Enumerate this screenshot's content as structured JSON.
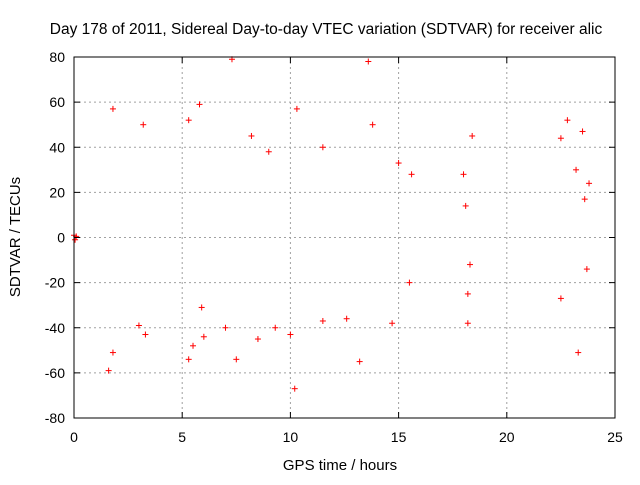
{
  "chart_data": {
    "type": "scatter",
    "title": "Day 178 of 2011, Sidereal Day-to-day VTEC variation (SDTVAR) for receiver alic",
    "xlabel": "GPS time / hours",
    "ylabel": "SDTVAR / TECUs",
    "xlim": [
      0,
      25
    ],
    "ylim": [
      -80,
      80
    ],
    "xticks": [
      0,
      5,
      10,
      15,
      20,
      25
    ],
    "yticks": [
      -80,
      -60,
      -40,
      -20,
      0,
      20,
      40,
      60,
      80
    ],
    "grid": true,
    "marker": "+",
    "series": [
      {
        "name": "SDTVAR",
        "color": "#ff0000",
        "points": [
          [
            0.0,
            1
          ],
          [
            0.05,
            -1
          ],
          [
            0.1,
            0.5
          ],
          [
            1.8,
            57
          ],
          [
            1.6,
            -59
          ],
          [
            1.8,
            -51
          ],
          [
            3.2,
            50
          ],
          [
            3.3,
            -43
          ],
          [
            3.0,
            -39
          ],
          [
            5.3,
            52
          ],
          [
            5.8,
            59
          ],
          [
            5.5,
            -48
          ],
          [
            5.3,
            -54
          ],
          [
            6.0,
            -44
          ],
          [
            5.9,
            -31
          ],
          [
            7.3,
            79
          ],
          [
            7.5,
            -54
          ],
          [
            7.0,
            -40
          ],
          [
            8.2,
            45
          ],
          [
            8.5,
            -45
          ],
          [
            9.3,
            -40
          ],
          [
            9.0,
            38
          ],
          [
            10.0,
            -43
          ],
          [
            10.3,
            57
          ],
          [
            10.2,
            -67
          ],
          [
            11.5,
            -37
          ],
          [
            11.5,
            40
          ],
          [
            12.6,
            -36
          ],
          [
            13.2,
            -55
          ],
          [
            13.6,
            78
          ],
          [
            13.8,
            50
          ],
          [
            14.7,
            -38
          ],
          [
            15.0,
            33
          ],
          [
            15.5,
            -20
          ],
          [
            15.6,
            28
          ],
          [
            18.0,
            28
          ],
          [
            18.2,
            -25
          ],
          [
            18.2,
            -38
          ],
          [
            18.4,
            45
          ],
          [
            18.1,
            14
          ],
          [
            18.3,
            -12
          ],
          [
            22.5,
            44
          ],
          [
            22.5,
            -27
          ],
          [
            22.8,
            52
          ],
          [
            23.3,
            -51
          ],
          [
            23.5,
            47
          ],
          [
            23.2,
            30
          ],
          [
            23.6,
            17
          ],
          [
            23.7,
            -14
          ],
          [
            23.8,
            24
          ]
        ]
      }
    ]
  }
}
